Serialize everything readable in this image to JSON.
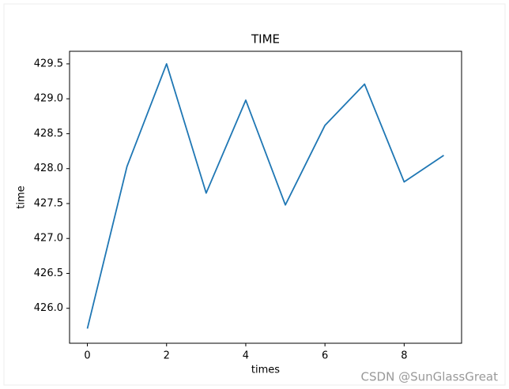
{
  "chart_data": {
    "type": "line",
    "title": "TIME",
    "xlabel": "times",
    "ylabel": "time",
    "x": [
      0,
      1,
      2,
      3,
      4,
      5,
      6,
      7,
      8,
      9
    ],
    "series": [
      {
        "color": "#1f77b4",
        "values": [
          425.71,
          428.03,
          429.5,
          427.65,
          428.98,
          427.48,
          428.62,
          429.21,
          427.81,
          428.19
        ]
      }
    ],
    "xlim": [
      -0.45,
      9.45
    ],
    "xticks": [
      0,
      2,
      4,
      6,
      8
    ],
    "ylim": [
      425.5,
      429.68
    ],
    "yticks": [
      {
        "value": 426,
        "label": "426.0"
      },
      426.5,
      {
        "value": 427,
        "label": "427.0"
      },
      427.5,
      {
        "value": 428,
        "label": "428.0"
      },
      428.5,
      {
        "value": 429,
        "label": "429.0"
      },
      429.5
    ],
    "grid": false
  },
  "watermark": "CSDN @SunGlassGreat"
}
